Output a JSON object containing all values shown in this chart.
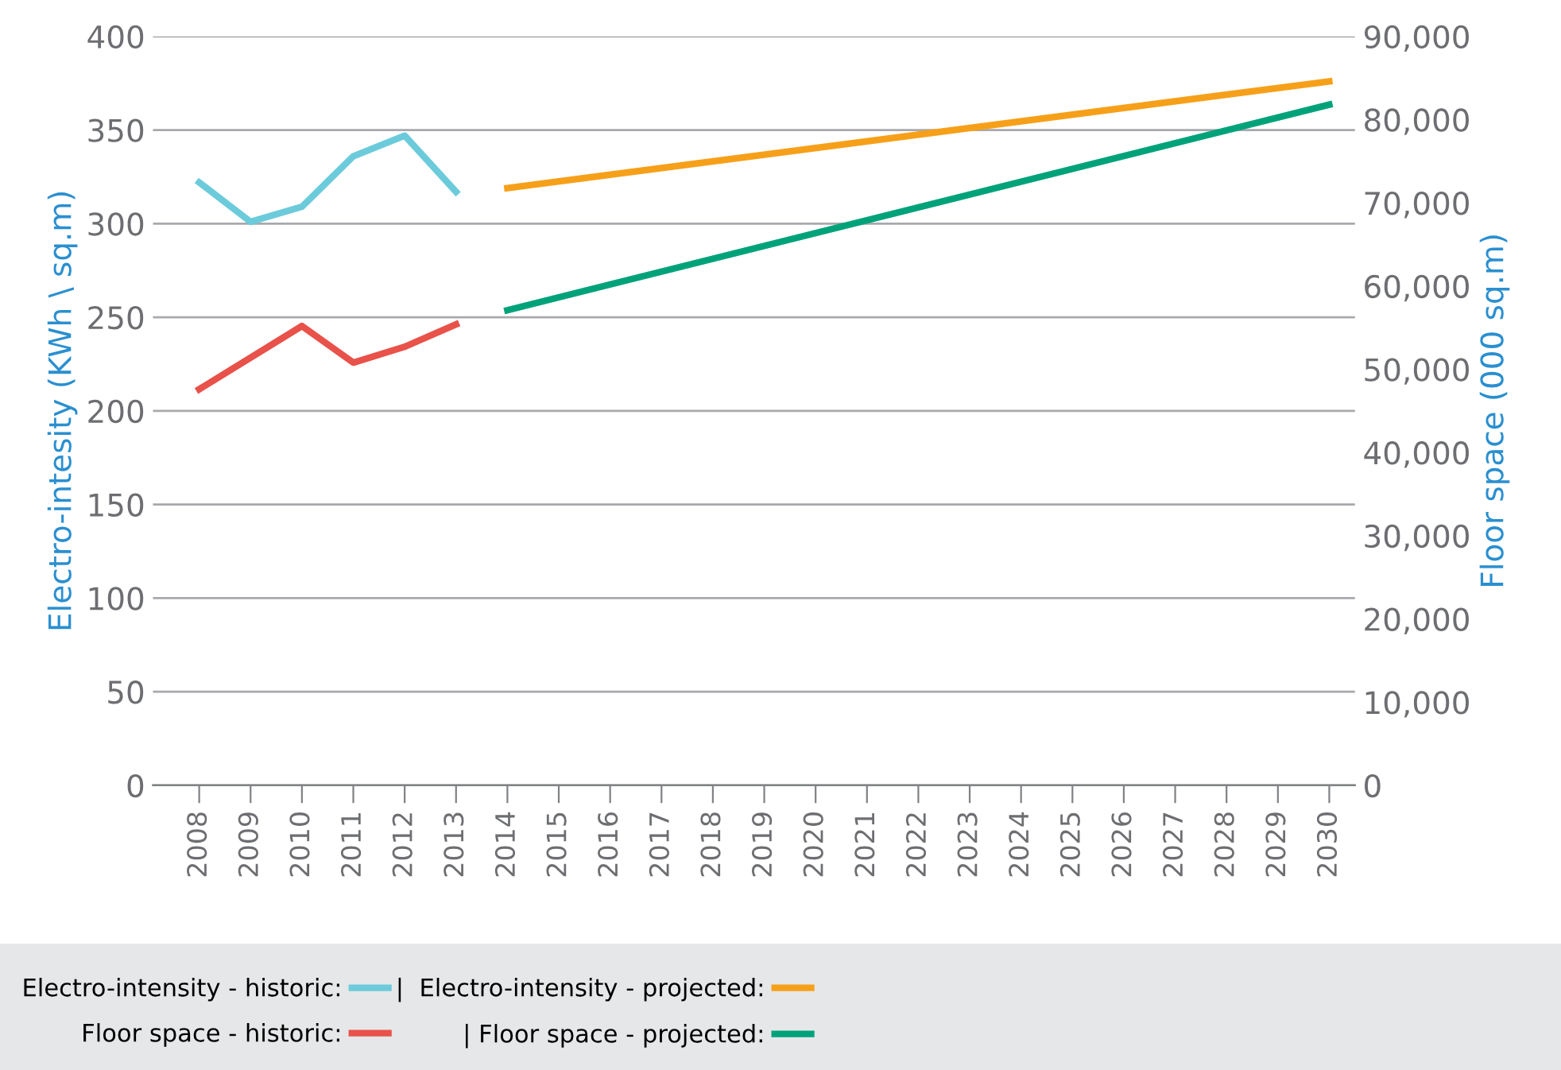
{
  "chart_data": {
    "type": "line",
    "ylabel": "Electro-intesity (KWh \\ sq.m)",
    "y2label": "Floor space (000 sq.m)",
    "xlim": [
      2007.1,
      2030.5
    ],
    "xticks": [
      2008,
      2009,
      2010,
      2011,
      2012,
      2013,
      2014,
      2015,
      2016,
      2017,
      2018,
      2019,
      2020,
      2021,
      2022,
      2023,
      2024,
      2025,
      2026,
      2027,
      2028,
      2029,
      2030
    ],
    "ylim": [
      0,
      400
    ],
    "yticks": [
      0,
      50,
      100,
      150,
      200,
      250,
      300,
      350,
      400
    ],
    "y2lim": [
      0,
      90000
    ],
    "y2ticks": [
      {
        "value": 0,
        "label": "0"
      },
      {
        "value": 10000,
        "label": "10,000"
      },
      {
        "value": 20000,
        "label": "20,000"
      },
      {
        "value": 30000,
        "label": "30,000"
      },
      {
        "value": 40000,
        "label": "40,000"
      },
      {
        "value": 50000,
        "label": "50,000"
      },
      {
        "value": 60000,
        "label": "60,000"
      },
      {
        "value": 70000,
        "label": "70,000"
      },
      {
        "value": 80000,
        "label": "80,000"
      },
      {
        "value": 90000,
        "label": "90,000"
      }
    ],
    "grid": "y",
    "legend": "bottom",
    "marker": "none",
    "line_style": "solid",
    "series": [
      {
        "name": "Electro-intensity - historic:",
        "color": "#6ccbdb",
        "x": [
          2008,
          2009,
          2010,
          2011,
          2012,
          2013
        ],
        "values": [
          322,
          301,
          309,
          336,
          347,
          317
        ]
      },
      {
        "name": "Floor space - historic:",
        "color": "#e8524a",
        "axis": "y2",
        "x": [
          2008,
          2010,
          2011,
          2012,
          2013
        ],
        "values": [
          47600,
          55200,
          50800,
          52700,
          55400
        ]
      },
      {
        "name": "|  Electro-intensity - projected:",
        "color": "#f6a01a",
        "x": [
          2014,
          2030
        ],
        "values": [
          319,
          376
        ]
      },
      {
        "name": "| Floor space - projected:",
        "color": "#00a27a",
        "axis": "y2",
        "x": [
          2014,
          2030
        ],
        "values": [
          57100,
          81800
        ]
      }
    ]
  }
}
